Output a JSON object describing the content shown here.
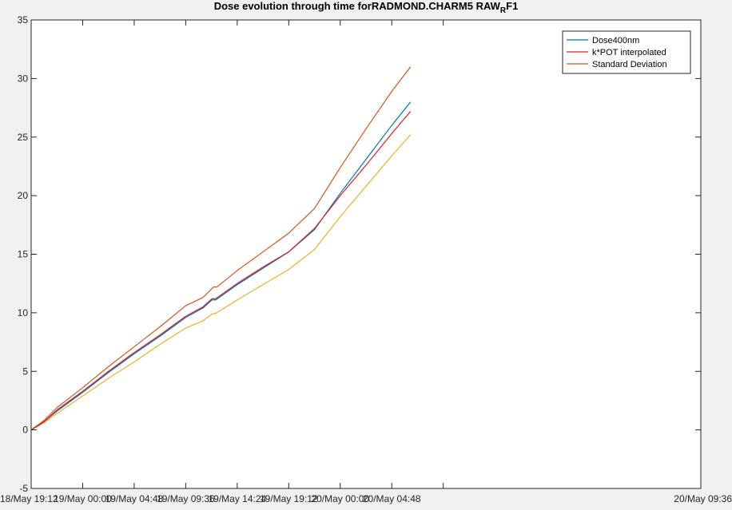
{
  "chart_data": {
    "type": "line",
    "title": "Dose evolution through time forRADMOND.CHARM5 RAW",
    "title_subscript": "R",
    "title_suffix": "F1",
    "xlabel": "",
    "ylabel": "",
    "x_range_hours": [
      0,
      62.4
    ],
    "ylim": [
      -5,
      35
    ],
    "x_ticks": [
      {
        "label": "18/May 19:12",
        "hours": 0
      },
      {
        "label": "19/May 00:00",
        "hours": 4.8
      },
      {
        "label": "19/May 04:48",
        "hours": 9.6
      },
      {
        "label": "19/May 09:36",
        "hours": 14.4
      },
      {
        "label": "19/May 14:24",
        "hours": 19.2
      },
      {
        "label": "19/May 19:12",
        "hours": 24.0
      },
      {
        "label": "20/May 00:00",
        "hours": 28.8
      },
      {
        "label": "20/May 04:48",
        "hours": 33.6
      },
      {
        "label": "20/May 09:36",
        "hours": 38.4
      }
    ],
    "y_ticks": [
      -5,
      0,
      5,
      10,
      15,
      20,
      25,
      30,
      35
    ],
    "grid": false,
    "legend_position": "top-right",
    "series": [
      {
        "name": "Dose400nm",
        "color": "#0072bd",
        "points": [
          [
            0.0,
            0.0
          ],
          [
            1.2,
            0.7
          ],
          [
            2.4,
            1.6
          ],
          [
            4.8,
            3.2
          ],
          [
            7.2,
            4.9
          ],
          [
            9.6,
            6.5
          ],
          [
            12.0,
            8.0
          ],
          [
            14.4,
            9.6
          ],
          [
            16.0,
            10.4
          ],
          [
            16.85,
            11.1
          ],
          [
            17.2,
            11.1
          ],
          [
            19.2,
            12.4
          ],
          [
            21.6,
            13.8
          ],
          [
            24.0,
            15.2
          ],
          [
            26.4,
            17.1
          ],
          [
            28.8,
            20.2
          ],
          [
            31.2,
            23.1
          ],
          [
            33.6,
            26.0
          ],
          [
            35.35,
            28.0
          ]
        ]
      },
      {
        "name": "k*POT interpolated",
        "color": "#d62020",
        "points": [
          [
            0.0,
            0.0
          ],
          [
            1.2,
            0.7
          ],
          [
            2.4,
            1.7
          ],
          [
            4.8,
            3.3
          ],
          [
            7.2,
            5.0
          ],
          [
            9.6,
            6.6
          ],
          [
            12.0,
            8.1
          ],
          [
            14.4,
            9.7
          ],
          [
            16.0,
            10.5
          ],
          [
            16.85,
            11.2
          ],
          [
            17.2,
            11.2
          ],
          [
            19.2,
            12.5
          ],
          [
            21.6,
            13.9
          ],
          [
            24.0,
            15.2
          ],
          [
            26.4,
            17.2
          ],
          [
            28.8,
            20.0
          ],
          [
            31.2,
            22.6
          ],
          [
            33.6,
            25.3
          ],
          [
            35.35,
            27.2
          ]
        ]
      },
      {
        "name": "Standard Deviation",
        "color": "#d95319",
        "points": [
          [
            0.0,
            0.0
          ],
          [
            1.2,
            0.8
          ],
          [
            2.4,
            1.9
          ],
          [
            4.8,
            3.6
          ],
          [
            7.2,
            5.4
          ],
          [
            9.6,
            7.1
          ],
          [
            12.0,
            8.8
          ],
          [
            14.4,
            10.6
          ],
          [
            16.0,
            11.3
          ],
          [
            17.0,
            12.2
          ],
          [
            17.3,
            12.2
          ],
          [
            19.2,
            13.6
          ],
          [
            21.6,
            15.2
          ],
          [
            24.0,
            16.8
          ],
          [
            26.4,
            18.9
          ],
          [
            28.8,
            22.4
          ],
          [
            31.2,
            25.7
          ],
          [
            33.6,
            28.9
          ],
          [
            35.35,
            31.0
          ]
        ]
      },
      {
        "name": "",
        "color": "#edb120",
        "points": [
          [
            0.0,
            0.0
          ],
          [
            1.2,
            0.6
          ],
          [
            2.4,
            1.4
          ],
          [
            4.8,
            2.9
          ],
          [
            7.2,
            4.4
          ],
          [
            9.6,
            5.8
          ],
          [
            12.0,
            7.3
          ],
          [
            14.4,
            8.7
          ],
          [
            16.0,
            9.3
          ],
          [
            16.85,
            9.9
          ],
          [
            17.2,
            9.95
          ],
          [
            19.2,
            11.1
          ],
          [
            21.6,
            12.4
          ],
          [
            24.0,
            13.7
          ],
          [
            26.4,
            15.4
          ],
          [
            28.8,
            18.2
          ],
          [
            31.2,
            20.8
          ],
          [
            33.6,
            23.4
          ],
          [
            35.35,
            25.2
          ]
        ]
      }
    ]
  }
}
